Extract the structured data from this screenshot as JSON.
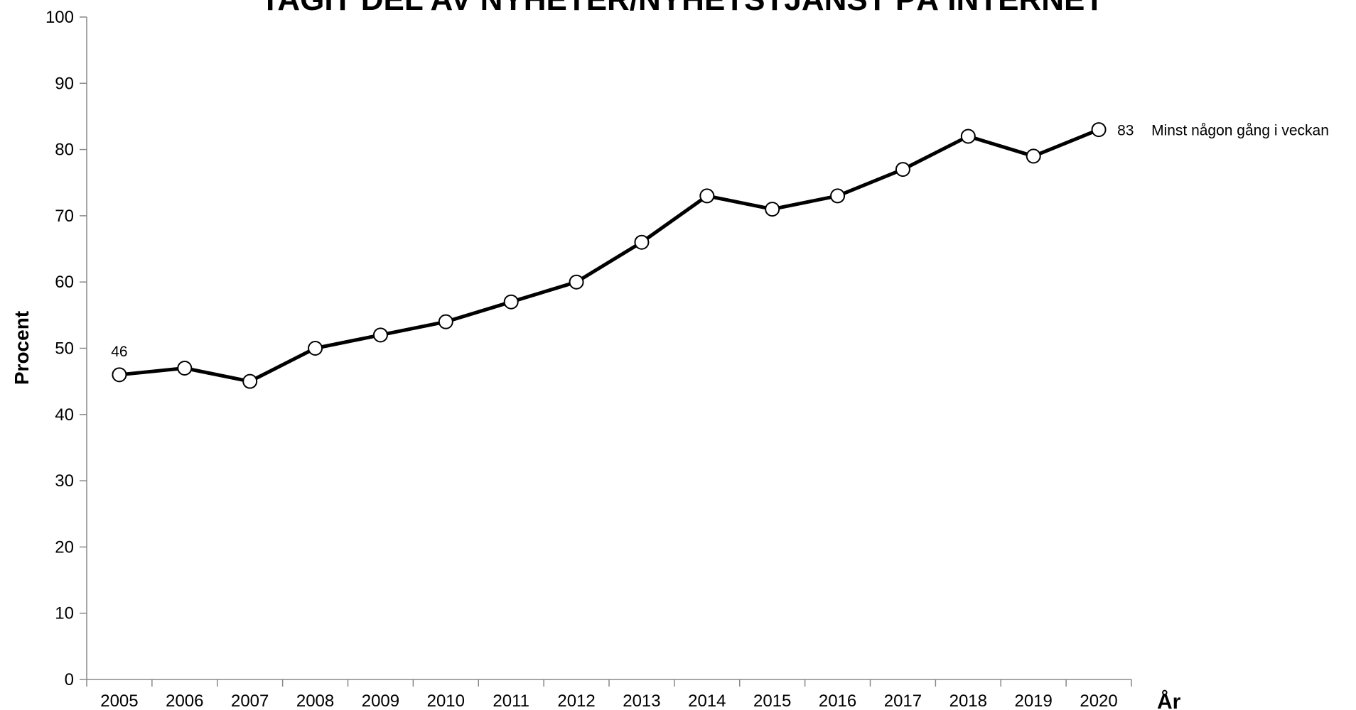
{
  "chart_data": {
    "type": "line",
    "title": "TAGIT DEL AV NYHETER/NYHETSTJÄNST PÅ INTERNET",
    "x_label": "År",
    "y_label": "Procent",
    "categories": [
      "2005",
      "2006",
      "2007",
      "2008",
      "2009",
      "2010",
      "2011",
      "2012",
      "2013",
      "2014",
      "2015",
      "2016",
      "2017",
      "2018",
      "2019",
      "2020"
    ],
    "series": [
      {
        "name": "Minst någon gång i veckan",
        "color": "#000000",
        "values": [
          46,
          47,
          45,
          50,
          52,
          54,
          57,
          60,
          66,
          73,
          71,
          73,
          77,
          82,
          79,
          83
        ]
      }
    ],
    "ylim": [
      0,
      100
    ],
    "yticks": [
      0,
      10,
      20,
      30,
      40,
      50,
      60,
      70,
      80,
      90,
      100
    ],
    "grid": false
  }
}
